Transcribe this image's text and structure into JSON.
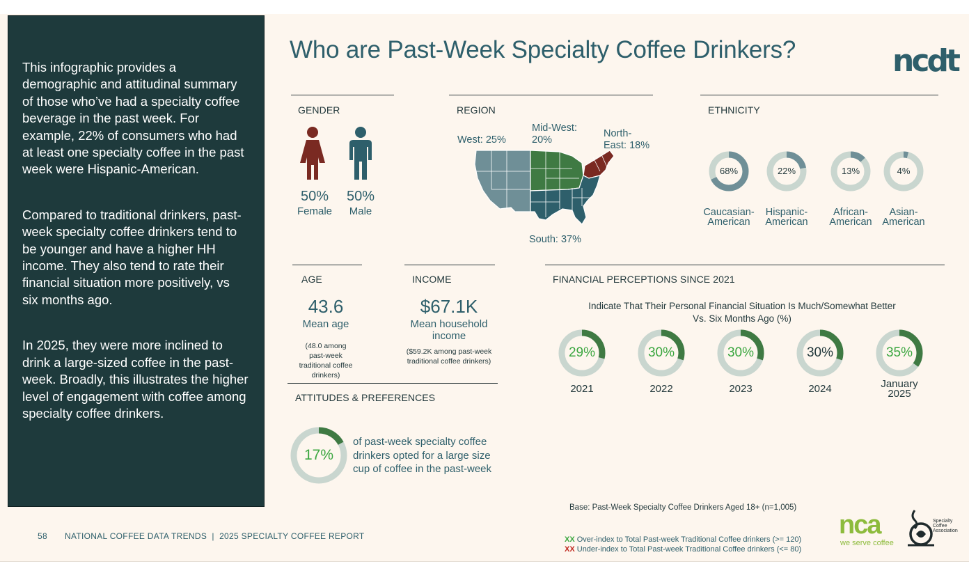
{
  "sidebar": {
    "paragraphs": [
      "This infographic provides a demographic and attitudinal summary of those who’ve had a specialty coffee beverage in the past week. For example, 22% of consumers who had at least one specialty coffee in the past week were Hispanic-American.",
      "Compared to traditional drinkers, past-week specialty coffee drinkers tend to be younger and have a higher HH income.  They also tend to rate their financial situation more positively, vs six months ago.",
      "In 2025, they were more inclined to drink a large-sized coffee in the past-week. Broadly, this illustrates the higher level of engagement with coffee among specialty coffee drinkers."
    ]
  },
  "header": {
    "title": "Who are Past-Week Specialty Coffee Drinkers?",
    "logo_text": "ncdt"
  },
  "gender": {
    "label": "GENDER",
    "female": {
      "pct": "50%",
      "label": "Female",
      "color": "#7a2a22"
    },
    "male": {
      "pct": "50%",
      "label": "Male",
      "color": "#2e5f6b"
    }
  },
  "region": {
    "label": "REGION",
    "west": "West: 25%",
    "midwest_1": "Mid-West:",
    "midwest_2": "20%",
    "northeast_1": "North-",
    "northeast_2": "East: 18%",
    "south": "South: 37%",
    "colors": {
      "west": "#6f8f97",
      "midwest": "#3f7a43",
      "northeast": "#7a2a22",
      "south": "#2e5f6b"
    }
  },
  "ethnicity": {
    "label": "ETHNICITY",
    "items": [
      {
        "pct": "68%",
        "value": 68,
        "label_1": "Caucasian-",
        "label_2": "American"
      },
      {
        "pct": "22%",
        "value": 22,
        "label_1": "Hispanic-",
        "label_2": "American"
      },
      {
        "pct": "13%",
        "value": 13,
        "label_1": "African-",
        "label_2": "American"
      },
      {
        "pct": "4%",
        "value": 4,
        "label_1": "Asian-",
        "label_2": "American"
      }
    ]
  },
  "age": {
    "label": "AGE",
    "value": "43.6",
    "sub": "Mean age",
    "note_1": "(48.0 among",
    "note_2": "past-week",
    "note_3": "traditional coffee",
    "note_4": "drinkers)"
  },
  "income": {
    "label": "INCOME",
    "value": "$67.1K",
    "sub_1": "Mean household",
    "sub_2": "income",
    "note_1": "($59.2K among past-week",
    "note_2": "traditional coffee drinkers)"
  },
  "financial": {
    "label": "FINANCIAL PERCEPTIONS SINCE 2021",
    "subtitle_1": "Indicate That Their Personal Financial Situation Is Much/Somewhat Better",
    "subtitle_2": "Vs. Six Months Ago (%)",
    "items": [
      {
        "pct": "29%",
        "value": 29,
        "year_1": "2021",
        "year_2": "",
        "highlight": "#3aa63f"
      },
      {
        "pct": "30%",
        "value": 30,
        "year_1": "2022",
        "year_2": "",
        "highlight": "#3aa63f"
      },
      {
        "pct": "30%",
        "value": 30,
        "year_1": "2023",
        "year_2": "",
        "highlight": "#3aa63f"
      },
      {
        "pct": "30%",
        "value": 30,
        "year_1": "2024",
        "year_2": "",
        "highlight": "#23393c"
      },
      {
        "pct": "35%",
        "value": 35,
        "year_1": "January",
        "year_2": "2025",
        "highlight": "#3aa63f"
      }
    ]
  },
  "attitudes": {
    "label": "ATTITUDES & PREFERENCES",
    "pct": "17%",
    "value": 17,
    "text_1": "of past-week specialty coffee",
    "text_2": "drinkers opted for a large size",
    "text_3": "cup of coffee in the past-week"
  },
  "base": "Base: Past-Week Specialty Coffee Drinkers Aged 18+ (n=1,005)",
  "footer": {
    "page": "58",
    "title": "NATIONAL COFFEE DATA TRENDS  |  2025 SPECIALTY COFFEE REPORT",
    "legend_over_mark": "XX",
    "legend_over_text": " Over-index to Total Past-week Traditional Coffee drinkers (>= 120)",
    "legend_under_mark": "XX",
    "legend_under_text": " Under-index to Total Past-week Traditional Coffee drinkers (<= 80)",
    "nca_logo": "nca",
    "nca_tagline": "we serve coffee",
    "sca_1": "Specialty",
    "sca_2": "Coffee",
    "sca_3": "Association"
  },
  "colors": {
    "donut_track": "#c9d6cf",
    "donut_fill_teal": "#6f8f97",
    "donut_fill_green": "#3f7a43",
    "over_index": "#3aa63f",
    "under_index": "#c0281f"
  }
}
